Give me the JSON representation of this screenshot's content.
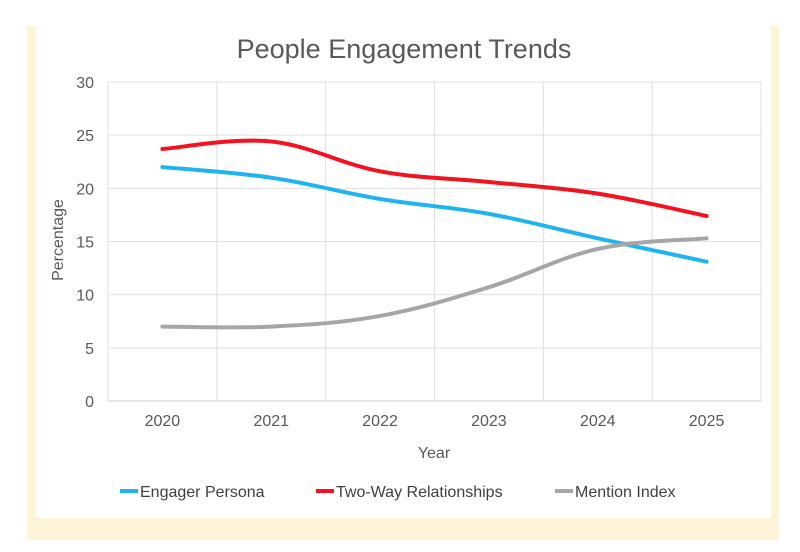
{
  "chart_data": {
    "type": "line",
    "title": "People Engagement Trends",
    "xlabel": "Year",
    "ylabel": "Percentage",
    "categories": [
      "2020",
      "2021",
      "2022",
      "2023",
      "2024",
      "2025"
    ],
    "ylim": [
      0,
      30
    ],
    "yticks": [
      0,
      5,
      10,
      15,
      20,
      25,
      30
    ],
    "grid": true,
    "legend_position": "bottom",
    "series": [
      {
        "name": "Engager Persona",
        "color": "#1fb4f0",
        "values": [
          22.0,
          21.0,
          19.0,
          17.6,
          15.3,
          13.1
        ]
      },
      {
        "name": "Two-Way Relationships",
        "color": "#f5111e",
        "values": [
          23.7,
          24.4,
          21.6,
          20.6,
          19.5,
          17.4
        ]
      },
      {
        "name": "Mention Index",
        "color": "#a6a6a6",
        "values": [
          7.0,
          7.0,
          8.0,
          10.7,
          14.3,
          15.3
        ]
      }
    ]
  },
  "colors": {
    "frame_background": "#fdf3d6",
    "card_background": "#ffffff",
    "gridline": "#e0e0e0",
    "text": "#595959"
  }
}
